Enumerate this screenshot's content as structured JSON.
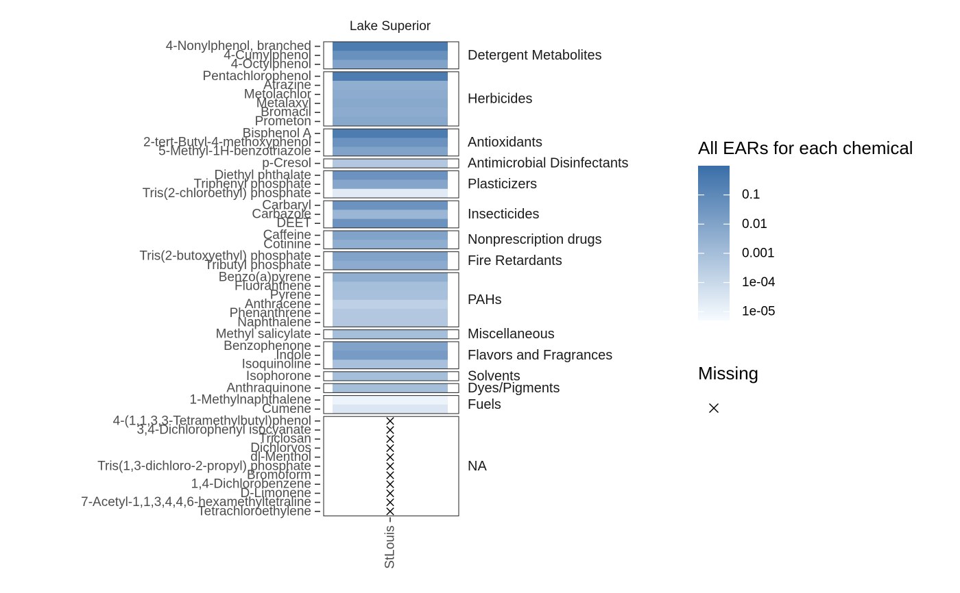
{
  "chart_data": {
    "type": "heatmap",
    "facet_strip": "Lake Superior",
    "x_categories": [
      "StLouis"
    ],
    "legend": {
      "fill_title": "All EARs for each chemical",
      "fill_breaks": [
        "0.1",
        "0.01",
        "0.001",
        "1e-04",
        "1e-05"
      ],
      "fill_log10_range": [
        -5.3,
        0.0
      ],
      "color_low": "#f7fbff",
      "color_high": "#3a6ea8",
      "missing_title": "Missing",
      "missing_symbol": "×"
    },
    "groups": [
      {
        "name": "Detergent Metabolites",
        "chemicals": [
          {
            "name": "4-Nonylphenol, branched",
            "value": 0.3
          },
          {
            "name": "4-Cumylphenol",
            "value": 0.05
          },
          {
            "name": "4-Octylphenol",
            "value": 0.01
          }
        ]
      },
      {
        "name": "Herbicides",
        "chemicals": [
          {
            "name": "Pentachlorophenol",
            "value": 0.3
          },
          {
            "name": "Atrazine",
            "value": 0.004
          },
          {
            "name": "Metolachlor",
            "value": 0.005
          },
          {
            "name": "Metalaxyl",
            "value": 0.006
          },
          {
            "name": "Bromacil",
            "value": 0.005
          },
          {
            "name": "Prometon",
            "value": 0.007
          }
        ]
      },
      {
        "name": "Antioxidants",
        "chemicals": [
          {
            "name": "Bisphenol A",
            "value": 0.3
          },
          {
            "name": "2-tert-Butyl-4-methoxyphenol",
            "value": 0.04
          },
          {
            "name": "5-Methyl-1H-benzotriazole",
            "value": 0.01
          }
        ]
      },
      {
        "name": "Antimicrobial Disinfectants",
        "chemicals": [
          {
            "name": "p-Cresol",
            "value": 0.0004
          }
        ]
      },
      {
        "name": "Plasticizers",
        "chemicals": [
          {
            "name": "Diethyl phthalate",
            "value": 0.04
          },
          {
            "name": "Triphenyl phosphate",
            "value": 0.008
          },
          {
            "name": "Tris(2-chloroethyl) phosphate",
            "value": 2e-05
          }
        ]
      },
      {
        "name": "Insecticides",
        "chemicals": [
          {
            "name": "Carbaryl",
            "value": 0.04
          },
          {
            "name": "Carbazole",
            "value": 0.002
          },
          {
            "name": "DEET",
            "value": 0.04
          }
        ]
      },
      {
        "name": "Nonprescription drugs",
        "chemicals": [
          {
            "name": "Caffeine",
            "value": 0.01
          },
          {
            "name": "Cotinine",
            "value": 0.004
          }
        ]
      },
      {
        "name": "Fire Retardants",
        "chemicals": [
          {
            "name": "Tris(2-butoxyethyl) phosphate",
            "value": 0.01
          },
          {
            "name": "Tributyl phosphate",
            "value": 0.005
          }
        ]
      },
      {
        "name": "PAHs",
        "chemicals": [
          {
            "name": "Benzo(a)pyrene",
            "value": 0.004
          },
          {
            "name": "Fluoranthene",
            "value": 0.001
          },
          {
            "name": "Pyrene",
            "value": 0.0008
          },
          {
            "name": "Anthracene",
            "value": 0.0002
          },
          {
            "name": "Phenanthrene",
            "value": 0.0004
          },
          {
            "name": "Naphthalene",
            "value": 0.0004
          }
        ]
      },
      {
        "name": "Miscellaneous",
        "chemicals": [
          {
            "name": "Methyl salicylate",
            "value": 0.001
          }
        ]
      },
      {
        "name": "Flavors and Fragrances",
        "chemicals": [
          {
            "name": "Benzophenone",
            "value": 0.01
          },
          {
            "name": "Indole",
            "value": 0.02
          },
          {
            "name": "Isoquinoline",
            "value": 0.0008
          }
        ]
      },
      {
        "name": "Solvents",
        "chemicals": [
          {
            "name": "Isophorone",
            "value": 0.001
          }
        ]
      },
      {
        "name": "Dyes/Pigments",
        "chemicals": [
          {
            "name": "Anthraquinone",
            "value": 0.001
          }
        ]
      },
      {
        "name": "Fuels",
        "chemicals": [
          {
            "name": "1-Methylnaphthalene",
            "value": 1e-05
          },
          {
            "name": "Cumene",
            "value": 3e-05
          }
        ]
      },
      {
        "name": "NA",
        "chemicals": [
          {
            "name": "4-(1,1,3,3-Tetramethylbutyl)phenol",
            "value": null
          },
          {
            "name": "3,4-Dichlorophenyl isocyanate",
            "value": null
          },
          {
            "name": "Triclosan",
            "value": null
          },
          {
            "name": "Dichlorvos",
            "value": null
          },
          {
            "name": "dl-Menthol",
            "value": null
          },
          {
            "name": "Tris(1,3-dichloro-2-propyl) phosphate",
            "value": null
          },
          {
            "name": "Bromoform",
            "value": null
          },
          {
            "name": "1,4-Dichlorobenzene",
            "value": null
          },
          {
            "name": "D-Limonene",
            "value": null
          },
          {
            "name": "7-Acetyl-1,1,3,4,4,6-hexamethyltetraline",
            "value": null
          },
          {
            "name": "Tetrachloroethylene",
            "value": null
          }
        ]
      }
    ]
  }
}
